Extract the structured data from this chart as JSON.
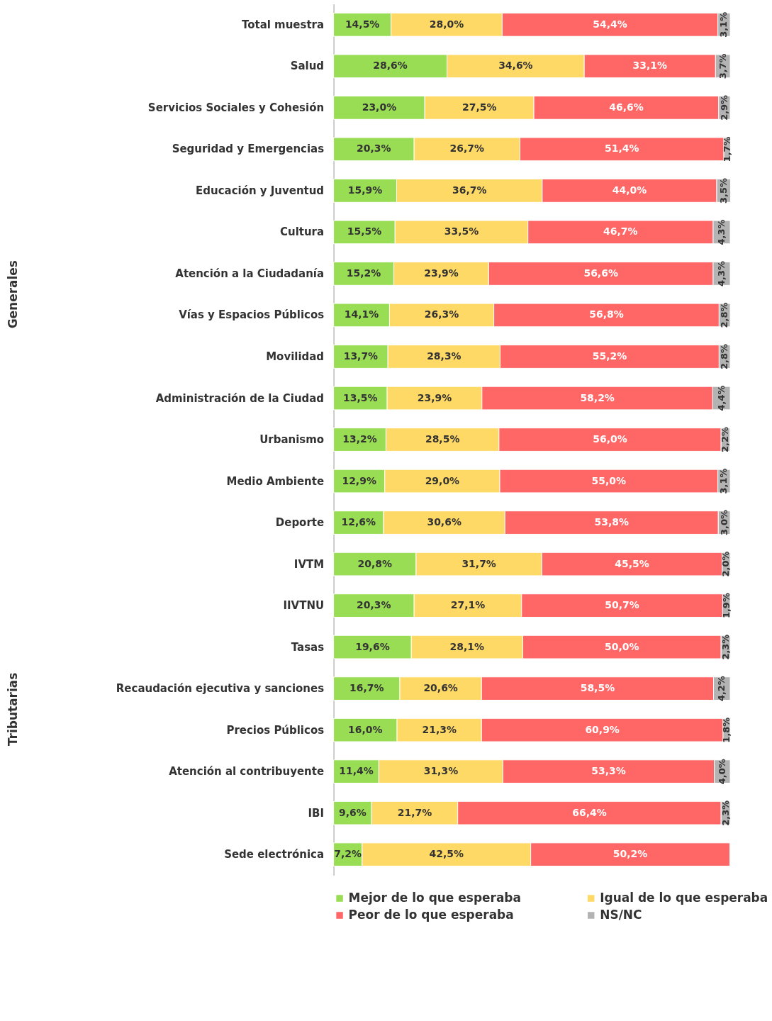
{
  "chart_data": {
    "type": "bar",
    "orientation": "horizontal",
    "stacked": true,
    "categories": [
      "Total muestra",
      "Salud",
      "Servicios Sociales y Cohesión",
      "Seguridad y Emergencias",
      "Educación y Juventud",
      "Cultura",
      "Atención a la Ciudadanía",
      "Vías y Espacios Públicos",
      "Movilidad",
      "Administración de la Ciudad",
      "Urbanismo",
      "Medio Ambiente",
      "Deporte",
      "IVTM",
      "IIVTNU",
      "Tasas",
      "Recaudación ejecutiva y sanciones",
      "Precios Públicos",
      "Atención al contribuyente",
      "IBI",
      "Sede electrónica"
    ],
    "series": [
      {
        "name": "Mejor de lo que esperaba",
        "color": "#99dd55",
        "values": [
          14.5,
          28.6,
          23.0,
          20.3,
          15.9,
          15.5,
          15.2,
          14.1,
          13.7,
          13.5,
          13.2,
          12.9,
          12.6,
          20.8,
          20.3,
          19.6,
          16.7,
          16.0,
          11.4,
          9.6,
          7.2
        ],
        "value_labels": [
          "14,5%",
          "28,6%",
          "23,0%",
          "20,3%",
          "15,9%",
          "15,5%",
          "15,2%",
          "14,1%",
          "13,7%",
          "13,5%",
          "13,2%",
          "12,9%",
          "12,6%",
          "20,8%",
          "20,3%",
          "19,6%",
          "16,7%",
          "16,0%",
          "11,4%",
          "9,6%",
          "7,2%"
        ]
      },
      {
        "name": "Igual de lo que esperaba",
        "color": "#ffd966",
        "values": [
          28.0,
          34.6,
          27.5,
          26.7,
          36.7,
          33.5,
          23.9,
          26.3,
          28.3,
          23.9,
          28.5,
          29.0,
          30.6,
          31.7,
          27.1,
          28.1,
          20.6,
          21.3,
          31.3,
          21.7,
          42.5
        ],
        "value_labels": [
          "28,0%",
          "34,6%",
          "27,5%",
          "26,7%",
          "36,7%",
          "33,5%",
          "23,9%",
          "26,3%",
          "28,3%",
          "23,9%",
          "28,5%",
          "29,0%",
          "30,6%",
          "31,7%",
          "27,1%",
          "28,1%",
          "20,6%",
          "21,3%",
          "31,3%",
          "21,7%",
          "42,5%"
        ]
      },
      {
        "name": "Peor de lo que esperaba",
        "color": "#ff6666",
        "values": [
          54.4,
          33.1,
          46.6,
          51.4,
          44.0,
          46.7,
          56.6,
          56.8,
          55.2,
          58.2,
          56.0,
          55.0,
          53.8,
          45.5,
          50.7,
          50.0,
          58.5,
          60.9,
          53.3,
          66.4,
          50.2
        ],
        "value_labels": [
          "54,4%",
          "33,1%",
          "46,6%",
          "51,4%",
          "44,0%",
          "46,7%",
          "56,6%",
          "56,8%",
          "55,2%",
          "58,2%",
          "56,0%",
          "55,0%",
          "53,8%",
          "45,5%",
          "50,7%",
          "50,0%",
          "58,5%",
          "60,9%",
          "53,3%",
          "66,4%",
          "50,2%"
        ]
      },
      {
        "name": "NS/NC",
        "color": "#b3b3b3",
        "values": [
          3.1,
          3.7,
          2.9,
          1.7,
          3.5,
          4.3,
          4.3,
          2.8,
          2.8,
          4.4,
          2.2,
          3.1,
          3.0,
          2.0,
          1.9,
          2.3,
          4.2,
          1.8,
          4.0,
          2.3,
          null
        ],
        "value_labels": [
          "3,1%",
          "3,7%",
          "2,9%",
          "1,7%",
          "3,5%",
          "4,3%",
          "4,3%",
          "2,8%",
          "2,8%",
          "4,4%",
          "2,2%",
          "3,1%",
          "3,0%",
          "2,0%",
          "1,9%",
          "2,3%",
          "4,2%",
          "1,8%",
          "4,0%",
          "2,3%",
          null
        ]
      }
    ],
    "xlim": [
      0,
      100
    ],
    "tick_labels": "y",
    "legend": "bottom",
    "annotations": [
      "Generales",
      "Tributarias"
    ]
  }
}
